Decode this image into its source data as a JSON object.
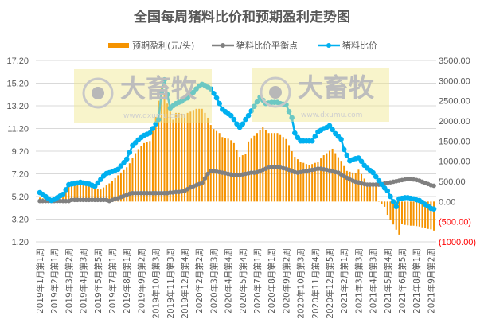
{
  "chart_data": {
    "type": "bar+line",
    "title": "全国每周猪料比价和预期盈利走势图",
    "legend_position": "top",
    "grid": true,
    "x_tick_labels": [
      "2019年1月第1周",
      "2019年2月第1周",
      "2019年3月第2周",
      "2019年4月第3周",
      "2019年5月第5周",
      "2019年7月第1周",
      "2019年8月第1周",
      "2019年9月第2周",
      "2019年10月第3周",
      "2019年11月第3周",
      "2019年12月第4周",
      "2020年2月第2周",
      "2020年3月第3周",
      "2020年4月第4周",
      "2020年5月第4周",
      "2020年7月第1周",
      "2020年8月第1周",
      "2020年9月第2周",
      "2020年10月第3周",
      "2020年11月第4周",
      "2020年12月第5周",
      "2021年2月第1周",
      "2021年3月第3周",
      "2021年4月第3周",
      "2021年5月第4周",
      "2021年6月第5周",
      "2021年8月第1周",
      "2021年9月第2周"
    ],
    "x_tick_every_weeks": 5,
    "left_axis": {
      "ylim": [
        1.2,
        17.2
      ],
      "ticks": [
        "1.20",
        "3.20",
        "5.20",
        "7.20",
        "9.20",
        "11.20",
        "13.20",
        "15.20",
        "17.20"
      ]
    },
    "right_axis": {
      "ylim": [
        -1000,
        3500
      ],
      "ticks": [
        "(1000.00)",
        "(500.00)",
        "0.00",
        "500.00",
        "1000.00",
        "1500.00",
        "2000.00",
        "2500.00",
        "3000.00",
        "3500.00"
      ]
    },
    "series": [
      {
        "name": "预期盈利(元/头)",
        "type": "bar",
        "axis": "right",
        "color": "#F59300",
        "values": [
          100,
          80,
          60,
          60,
          80,
          100,
          120,
          150,
          180,
          250,
          400,
          420,
          430,
          430,
          420,
          410,
          400,
          380,
          360,
          340,
          320,
          300,
          350,
          400,
          450,
          500,
          580,
          650,
          720,
          780,
          850,
          950,
          1080,
          1200,
          1300,
          1380,
          1450,
          1480,
          1500,
          1800,
          2100,
          2500,
          2830,
          2650,
          2430,
          2230,
          2030,
          2200,
          2200,
          2180,
          2170,
          2200,
          2230,
          2270,
          2300,
          2300,
          2300,
          2200,
          2080,
          1900,
          1800,
          1750,
          1700,
          1600,
          1580,
          1560,
          1520,
          1450,
          1290,
          1110,
          1150,
          1190,
          1490,
          1560,
          1630,
          1700,
          1780,
          1850,
          1770,
          1700,
          1700,
          1700,
          1700,
          1650,
          1600,
          1550,
          1400,
          1250,
          1110,
          1050,
          990,
          960,
          930,
          910,
          930,
          960,
          990,
          1070,
          1150,
          1200,
          1260,
          1310,
          1200,
          1100,
          1010,
          880,
          760,
          740,
          720,
          700,
          790,
          680,
          570,
          460,
          440,
          420,
          400,
          20,
          -60,
          -130,
          -330,
          -450,
          -570,
          -700,
          -820,
          -560,
          -580,
          -590,
          -600,
          -600,
          -610,
          -620,
          -640,
          -660,
          -680,
          -690,
          -720
        ]
      },
      {
        "name": "猪料比价平衡点",
        "type": "line",
        "axis": "left",
        "color": "#808080",
        "values": [
          4.8,
          4.8,
          4.8,
          4.8,
          4.8,
          4.8,
          4.8,
          4.8,
          4.8,
          4.8,
          4.8,
          4.9,
          4.9,
          4.9,
          4.9,
          4.9,
          4.9,
          4.9,
          4.9,
          4.9,
          4.9,
          4.9,
          4.9,
          4.9,
          4.8,
          4.9,
          5.0,
          5.05,
          5.15,
          5.25,
          5.35,
          5.45,
          5.5,
          5.5,
          5.5,
          5.5,
          5.5,
          5.5,
          5.5,
          5.5,
          5.5,
          5.5,
          5.5,
          5.5,
          5.5,
          5.55,
          5.55,
          5.6,
          5.6,
          5.65,
          5.7,
          5.85,
          6.0,
          6.1,
          6.2,
          6.3,
          6.4,
          6.8,
          7.2,
          7.45,
          7.45,
          7.4,
          7.35,
          7.3,
          7.25,
          7.2,
          7.15,
          7.1,
          7.1,
          7.1,
          7.15,
          7.2,
          7.25,
          7.3,
          7.3,
          7.35,
          7.45,
          7.55,
          7.65,
          7.75,
          7.8,
          7.8,
          7.8,
          7.75,
          7.7,
          7.65,
          7.55,
          7.45,
          7.35,
          7.3,
          7.35,
          7.4,
          7.45,
          7.5,
          7.55,
          7.6,
          7.65,
          7.65,
          7.6,
          7.55,
          7.5,
          7.45,
          7.35,
          7.3,
          7.15,
          7.0,
          6.85,
          6.7,
          6.6,
          6.5,
          6.45,
          6.35,
          6.3,
          6.25,
          6.25,
          6.25,
          6.25,
          6.25,
          6.3,
          6.35,
          6.4,
          6.45,
          6.5,
          6.55,
          6.6,
          6.65,
          6.7,
          6.75,
          6.75,
          6.7,
          6.65,
          6.6,
          6.5,
          6.4,
          6.3,
          6.2,
          6.15
        ]
      },
      {
        "name": "猪料比价",
        "type": "line",
        "axis": "left",
        "color": "#00B0F0",
        "values": [
          5.55,
          5.4,
          5.2,
          5.0,
          4.85,
          4.95,
          5.1,
          5.25,
          5.4,
          5.8,
          6.25,
          6.3,
          6.35,
          6.4,
          6.46,
          6.4,
          6.35,
          6.3,
          6.2,
          6.1,
          6.4,
          6.7,
          7.0,
          7.23,
          7.3,
          7.4,
          7.5,
          7.6,
          7.9,
          8.2,
          8.5,
          9.1,
          9.7,
          9.95,
          10.2,
          10.4,
          10.6,
          10.7,
          10.8,
          11.2,
          11.6,
          12.0,
          14.4,
          15.5,
          14.2,
          13.0,
          13.2,
          13.4,
          13.5,
          13.6,
          13.8,
          13.9,
          14.2,
          14.4,
          14.7,
          14.95,
          15.1,
          15.0,
          14.85,
          14.7,
          14.3,
          13.9,
          13.4,
          12.9,
          12.7,
          12.5,
          12.35,
          12.0,
          11.6,
          11.3,
          11.6,
          12.0,
          12.35,
          12.75,
          13.15,
          13.55,
          13.97,
          13.7,
          13.4,
          13.45,
          13.5,
          13.5,
          13.5,
          13.4,
          13.35,
          13.3,
          12.7,
          12.15,
          10.8,
          10.4,
          10.1,
          10.1,
          10.1,
          10.1,
          10.1,
          10.5,
          10.9,
          11.05,
          11.2,
          11.3,
          11.45,
          11.1,
          10.75,
          10.5,
          10.25,
          9.35,
          8.85,
          8.35,
          8.45,
          8.55,
          8.6,
          8.3,
          7.95,
          7.7,
          7.5,
          7.3,
          6.95,
          6.6,
          6.25,
          5.95,
          5.7,
          5.2,
          4.75,
          4.3,
          5.0,
          5.05,
          5.1,
          5.1,
          5.05,
          5.0,
          4.9,
          4.85,
          4.7,
          4.5,
          4.35,
          4.15,
          4.1
        ]
      }
    ]
  },
  "watermark": {
    "brand": "大畜牧",
    "url": "www.dxumu.com",
    "color": "#F0E68C"
  }
}
